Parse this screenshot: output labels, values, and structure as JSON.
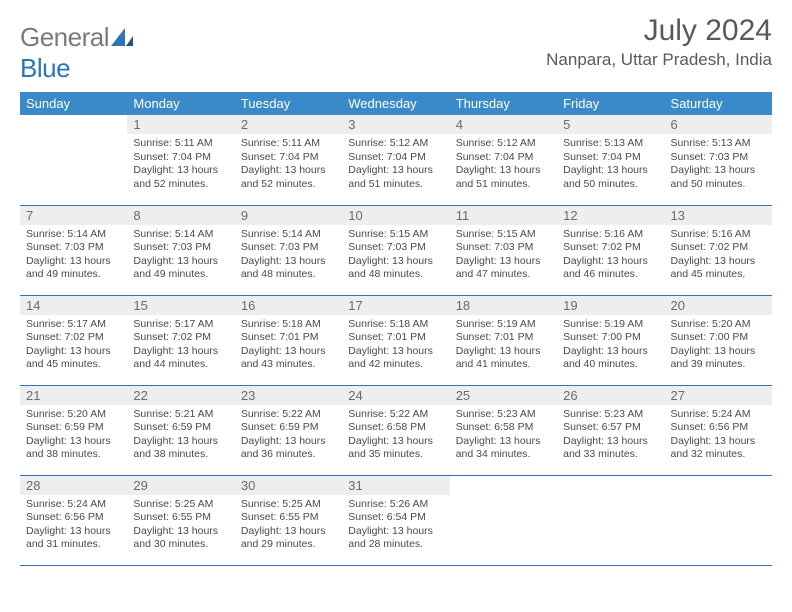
{
  "brand": {
    "name_a": "General",
    "name_b": "Blue"
  },
  "title": "July 2024",
  "location": "Nanpara, Uttar Pradesh, India",
  "colors": {
    "header_bg": "#3a8ac9",
    "header_text": "#ffffff",
    "border": "#2e75b6",
    "daynum_bg": "#eeeeee",
    "text": "#4a4a4a",
    "title_text": "#595959",
    "logo_gray": "#7a7a7a",
    "logo_blue": "#2e75b6"
  },
  "days_of_week": [
    "Sunday",
    "Monday",
    "Tuesday",
    "Wednesday",
    "Thursday",
    "Friday",
    "Saturday"
  ],
  "cells": [
    {
      "n": "",
      "sr": "",
      "ss": "",
      "dl": ""
    },
    {
      "n": "1",
      "sr": "Sunrise: 5:11 AM",
      "ss": "Sunset: 7:04 PM",
      "dl": "Daylight: 13 hours and 52 minutes."
    },
    {
      "n": "2",
      "sr": "Sunrise: 5:11 AM",
      "ss": "Sunset: 7:04 PM",
      "dl": "Daylight: 13 hours and 52 minutes."
    },
    {
      "n": "3",
      "sr": "Sunrise: 5:12 AM",
      "ss": "Sunset: 7:04 PM",
      "dl": "Daylight: 13 hours and 51 minutes."
    },
    {
      "n": "4",
      "sr": "Sunrise: 5:12 AM",
      "ss": "Sunset: 7:04 PM",
      "dl": "Daylight: 13 hours and 51 minutes."
    },
    {
      "n": "5",
      "sr": "Sunrise: 5:13 AM",
      "ss": "Sunset: 7:04 PM",
      "dl": "Daylight: 13 hours and 50 minutes."
    },
    {
      "n": "6",
      "sr": "Sunrise: 5:13 AM",
      "ss": "Sunset: 7:03 PM",
      "dl": "Daylight: 13 hours and 50 minutes."
    },
    {
      "n": "7",
      "sr": "Sunrise: 5:14 AM",
      "ss": "Sunset: 7:03 PM",
      "dl": "Daylight: 13 hours and 49 minutes."
    },
    {
      "n": "8",
      "sr": "Sunrise: 5:14 AM",
      "ss": "Sunset: 7:03 PM",
      "dl": "Daylight: 13 hours and 49 minutes."
    },
    {
      "n": "9",
      "sr": "Sunrise: 5:14 AM",
      "ss": "Sunset: 7:03 PM",
      "dl": "Daylight: 13 hours and 48 minutes."
    },
    {
      "n": "10",
      "sr": "Sunrise: 5:15 AM",
      "ss": "Sunset: 7:03 PM",
      "dl": "Daylight: 13 hours and 48 minutes."
    },
    {
      "n": "11",
      "sr": "Sunrise: 5:15 AM",
      "ss": "Sunset: 7:03 PM",
      "dl": "Daylight: 13 hours and 47 minutes."
    },
    {
      "n": "12",
      "sr": "Sunrise: 5:16 AM",
      "ss": "Sunset: 7:02 PM",
      "dl": "Daylight: 13 hours and 46 minutes."
    },
    {
      "n": "13",
      "sr": "Sunrise: 5:16 AM",
      "ss": "Sunset: 7:02 PM",
      "dl": "Daylight: 13 hours and 45 minutes."
    },
    {
      "n": "14",
      "sr": "Sunrise: 5:17 AM",
      "ss": "Sunset: 7:02 PM",
      "dl": "Daylight: 13 hours and 45 minutes."
    },
    {
      "n": "15",
      "sr": "Sunrise: 5:17 AM",
      "ss": "Sunset: 7:02 PM",
      "dl": "Daylight: 13 hours and 44 minutes."
    },
    {
      "n": "16",
      "sr": "Sunrise: 5:18 AM",
      "ss": "Sunset: 7:01 PM",
      "dl": "Daylight: 13 hours and 43 minutes."
    },
    {
      "n": "17",
      "sr": "Sunrise: 5:18 AM",
      "ss": "Sunset: 7:01 PM",
      "dl": "Daylight: 13 hours and 42 minutes."
    },
    {
      "n": "18",
      "sr": "Sunrise: 5:19 AM",
      "ss": "Sunset: 7:01 PM",
      "dl": "Daylight: 13 hours and 41 minutes."
    },
    {
      "n": "19",
      "sr": "Sunrise: 5:19 AM",
      "ss": "Sunset: 7:00 PM",
      "dl": "Daylight: 13 hours and 40 minutes."
    },
    {
      "n": "20",
      "sr": "Sunrise: 5:20 AM",
      "ss": "Sunset: 7:00 PM",
      "dl": "Daylight: 13 hours and 39 minutes."
    },
    {
      "n": "21",
      "sr": "Sunrise: 5:20 AM",
      "ss": "Sunset: 6:59 PM",
      "dl": "Daylight: 13 hours and 38 minutes."
    },
    {
      "n": "22",
      "sr": "Sunrise: 5:21 AM",
      "ss": "Sunset: 6:59 PM",
      "dl": "Daylight: 13 hours and 38 minutes."
    },
    {
      "n": "23",
      "sr": "Sunrise: 5:22 AM",
      "ss": "Sunset: 6:59 PM",
      "dl": "Daylight: 13 hours and 36 minutes."
    },
    {
      "n": "24",
      "sr": "Sunrise: 5:22 AM",
      "ss": "Sunset: 6:58 PM",
      "dl": "Daylight: 13 hours and 35 minutes."
    },
    {
      "n": "25",
      "sr": "Sunrise: 5:23 AM",
      "ss": "Sunset: 6:58 PM",
      "dl": "Daylight: 13 hours and 34 minutes."
    },
    {
      "n": "26",
      "sr": "Sunrise: 5:23 AM",
      "ss": "Sunset: 6:57 PM",
      "dl": "Daylight: 13 hours and 33 minutes."
    },
    {
      "n": "27",
      "sr": "Sunrise: 5:24 AM",
      "ss": "Sunset: 6:56 PM",
      "dl": "Daylight: 13 hours and 32 minutes."
    },
    {
      "n": "28",
      "sr": "Sunrise: 5:24 AM",
      "ss": "Sunset: 6:56 PM",
      "dl": "Daylight: 13 hours and 31 minutes."
    },
    {
      "n": "29",
      "sr": "Sunrise: 5:25 AM",
      "ss": "Sunset: 6:55 PM",
      "dl": "Daylight: 13 hours and 30 minutes."
    },
    {
      "n": "30",
      "sr": "Sunrise: 5:25 AM",
      "ss": "Sunset: 6:55 PM",
      "dl": "Daylight: 13 hours and 29 minutes."
    },
    {
      "n": "31",
      "sr": "Sunrise: 5:26 AM",
      "ss": "Sunset: 6:54 PM",
      "dl": "Daylight: 13 hours and 28 minutes."
    },
    {
      "n": "",
      "sr": "",
      "ss": "",
      "dl": ""
    },
    {
      "n": "",
      "sr": "",
      "ss": "",
      "dl": ""
    },
    {
      "n": "",
      "sr": "",
      "ss": "",
      "dl": ""
    }
  ]
}
